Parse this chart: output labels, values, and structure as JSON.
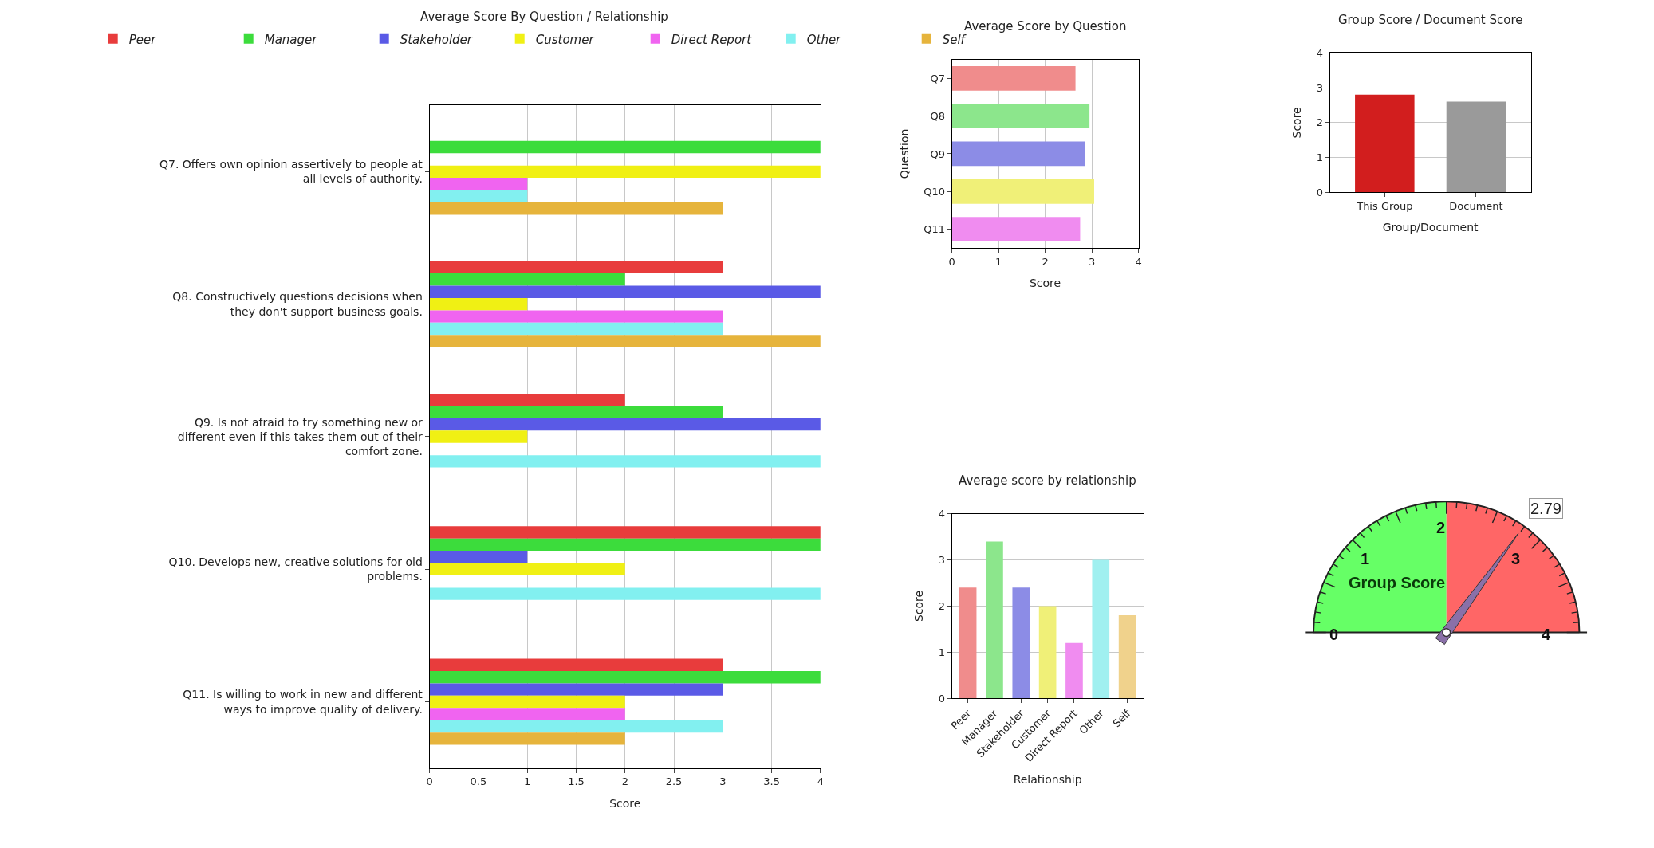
{
  "chart_data": [
    {
      "type": "bar",
      "orientation": "horizontal",
      "title": "Average Score By Question / Relationship",
      "xlabel": "Score",
      "categories": [
        "Q7. Offers own opinion assertively to people at all levels of authority.",
        "Q8. Constructively questions decisions when they don't support business goals.",
        "Q9. Is not afraid to try something new or different even if this takes them out of their comfort zone.",
        "Q10. Develops new, creative solutions for old problems.",
        "Q11. Is willing to work in new and different ways to improve quality of delivery."
      ],
      "series": [
        {
          "name": "Peer",
          "color": "#e83c3c",
          "values": [
            null,
            3,
            2,
            4,
            3
          ]
        },
        {
          "name": "Manager",
          "color": "#3cdc3c",
          "values": [
            4,
            2,
            3,
            4,
            4
          ]
        },
        {
          "name": "Stakeholder",
          "color": "#5a5ae6",
          "values": [
            null,
            4,
            4,
            1,
            3
          ]
        },
        {
          "name": "Customer",
          "color": "#f0f014",
          "values": [
            4,
            1,
            1,
            2,
            2
          ]
        },
        {
          "name": "Direct Report",
          "color": "#f064f0",
          "values": [
            1,
            3,
            null,
            null,
            2
          ]
        },
        {
          "name": "Other",
          "color": "#82f0f0",
          "values": [
            1,
            3,
            4,
            4,
            3
          ]
        },
        {
          "name": "Self",
          "color": "#e6b43c",
          "values": [
            3,
            4,
            null,
            null,
            2
          ]
        }
      ],
      "xlim": [
        0,
        4
      ],
      "xticks": [
        0,
        0.5,
        1,
        1.5,
        2,
        2.5,
        3,
        3.5,
        4
      ],
      "grid": "x",
      "legend": "top"
    },
    {
      "type": "bar",
      "orientation": "horizontal",
      "title": "Average Score by Question",
      "xlabel": "Score",
      "ylabel": "Question",
      "categories": [
        "Q7",
        "Q8",
        "Q9",
        "Q10",
        "Q11"
      ],
      "values": [
        2.65,
        2.95,
        2.85,
        3.05,
        2.75
      ],
      "colors": [
        "#f08c8c",
        "#8ce68c",
        "#8c8ce6",
        "#f0f078",
        "#f08cf0"
      ],
      "xlim": [
        0,
        4
      ],
      "xticks": [
        0,
        1,
        2,
        3,
        4
      ],
      "grid": "x"
    },
    {
      "type": "bar",
      "title": "Group Score / Document Score",
      "xlabel": "Group/Document",
      "ylabel": "Score",
      "categories": [
        "This Group",
        "Document"
      ],
      "values": [
        2.8,
        2.6
      ],
      "colors": [
        "#d21e1e",
        "#9a9a9a"
      ],
      "ylim": [
        0,
        4
      ],
      "yticks": [
        0,
        1,
        2,
        3,
        4
      ],
      "grid": "y"
    },
    {
      "type": "bar",
      "title": "Average score by relationship",
      "xlabel": "Relationship",
      "ylabel": "Score",
      "categories": [
        "Peer",
        "Manager",
        "Stakeholder",
        "Customer",
        "Direct Report",
        "Other",
        "Self"
      ],
      "values": [
        2.4,
        3.4,
        2.4,
        2.0,
        1.2,
        3.0,
        1.8
      ],
      "colors": [
        "#f08c8c",
        "#8ce68c",
        "#8c8ce6",
        "#f0f078",
        "#f08cf0",
        "#a0f0f0",
        "#f0d28c"
      ],
      "ylim": [
        0,
        4
      ],
      "yticks": [
        0,
        1,
        2,
        3,
        4
      ],
      "grid": "y"
    },
    {
      "type": "other",
      "title": "Group Score",
      "values": [
        2.79
      ],
      "value_labels": [
        "2.79"
      ],
      "annotations": [
        "0",
        "1",
        "2",
        "3",
        "4"
      ]
    }
  ]
}
